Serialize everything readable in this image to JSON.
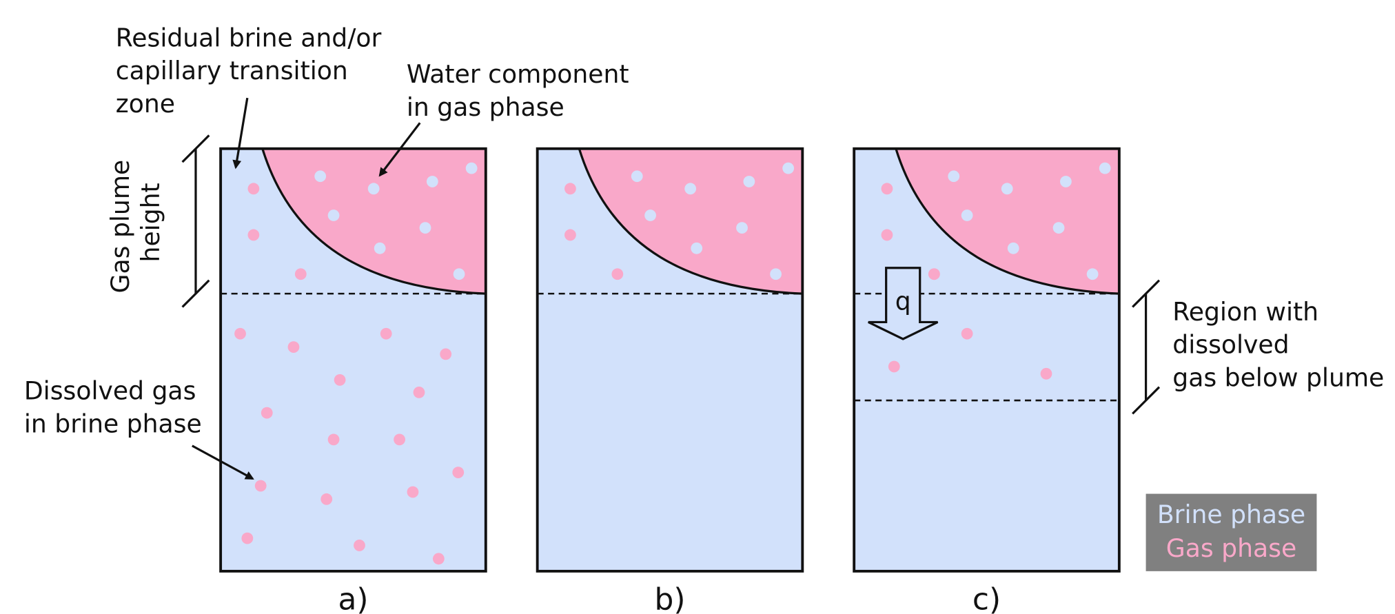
{
  "panels": [
    {
      "label": "a)"
    },
    {
      "label": "b)"
    },
    {
      "label": "c)"
    }
  ],
  "annotations": [
    {
      "lines": [
        "Residual brine and/or",
        "capillary transition",
        "zone"
      ]
    },
    {
      "lines": [
        "Water component",
        "in gas phase"
      ]
    },
    {
      "lines": [
        "Gas plume",
        "height"
      ]
    },
    {
      "lines": [
        "Dissolved gas",
        "in brine phase"
      ]
    },
    {
      "lines": [
        "Region with",
        "dissolved",
        "gas below plume"
      ]
    }
  ],
  "flux_label": "q",
  "legend": [
    {
      "label": "Brine phase"
    },
    {
      "label": "Gas phase"
    }
  ]
}
